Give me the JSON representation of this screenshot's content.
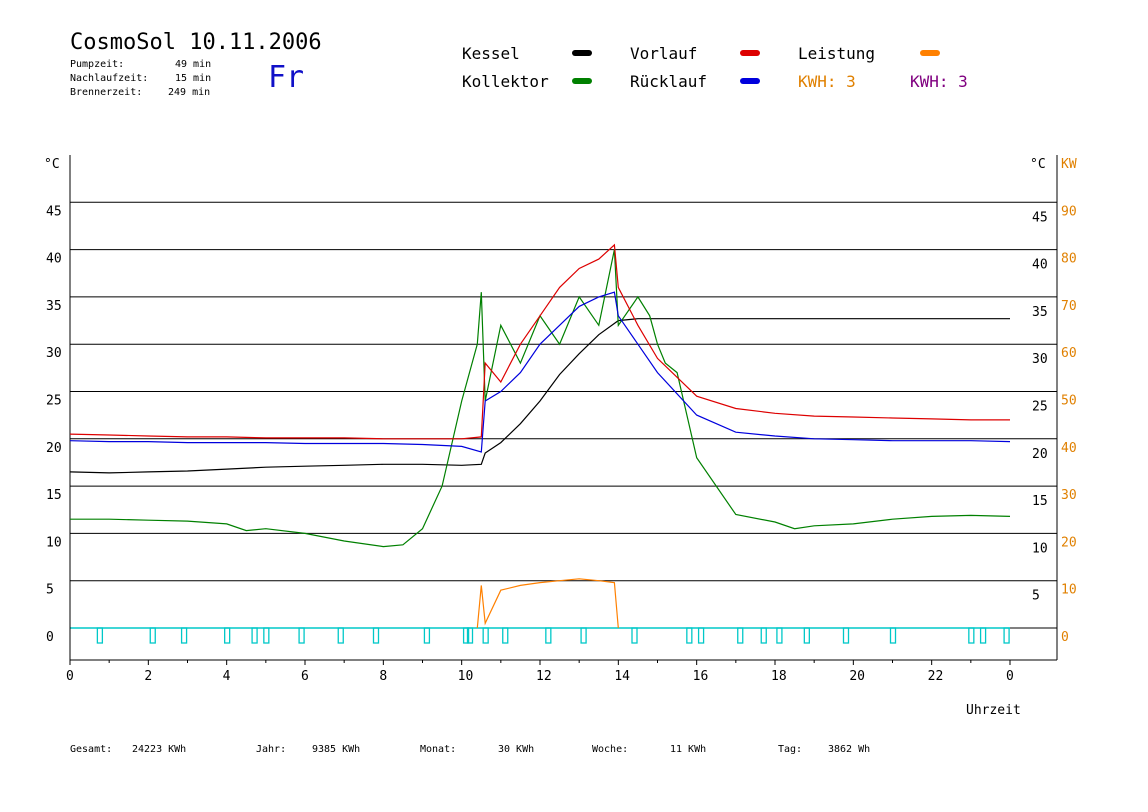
{
  "header": {
    "title": "CosmoSol 10.11.2006",
    "day": "Fr",
    "stats": [
      {
        "label": "Pumpzeit:",
        "value": "49 min"
      },
      {
        "label": "Nachlaufzeit:",
        "value": "15 min"
      },
      {
        "label": "Brennerzeit:",
        "value": "249 min"
      }
    ]
  },
  "legend": {
    "kessel": "Kessel",
    "kollektor": "Kollektor",
    "vorlauf": "Vorlauf",
    "ruecklauf": "Rücklauf",
    "leistung": "Leistung",
    "kwh1": "KWH: 3",
    "kwh2": "KWH: 3"
  },
  "footer": {
    "gesamt": {
      "label": "Gesamt:",
      "value": "24223 KWh"
    },
    "jahr": {
      "label": "Jahr:",
      "value": "9385 KWh"
    },
    "monat": {
      "label": "Monat:",
      "value": "30 KWh"
    },
    "woche": {
      "label": "Woche:",
      "value": "11 KWh"
    },
    "tag": {
      "label": "Tag:",
      "value": "3862 Wh"
    }
  },
  "colors": {
    "kessel": "#000000",
    "kollektor": "#008000",
    "vorlauf": "#dd0000",
    "ruecklauf": "#0000dd",
    "leistung": "#ff8000",
    "kwh2": "#800080",
    "pump": "#00c8c8",
    "kw_axis": "#e08000"
  },
  "chart_data": {
    "type": "line",
    "xlabel": "Uhrzeit",
    "ylabel_left": "°C",
    "ylabel_right": [
      "°C",
      "KW"
    ],
    "xlim": [
      0,
      24
    ],
    "ylim": [
      0,
      50
    ],
    "x_ticks": [
      "0",
      "2",
      "4",
      "6",
      "8",
      "10",
      "12",
      "14",
      "16",
      "18",
      "20",
      "22",
      "0"
    ],
    "y_ticks_left": [
      "0",
      "5",
      "10",
      "15",
      "20",
      "25",
      "30",
      "35",
      "40",
      "45"
    ],
    "y_ticks_right": [
      "5",
      "10",
      "15",
      "20",
      "25",
      "30",
      "35",
      "40",
      "45"
    ],
    "y_ticks_kw": [
      "0",
      "10",
      "20",
      "30",
      "40",
      "50",
      "60",
      "70",
      "80",
      "90"
    ],
    "gridlines_y": [
      5,
      10,
      15,
      20,
      25,
      30,
      35,
      40,
      45
    ],
    "series": [
      {
        "name": "Kessel",
        "key": "kessel",
        "x": [
          0,
          1,
          2,
          3,
          4,
          5,
          6,
          7,
          8,
          9,
          10,
          10.5,
          10.6,
          11,
          11.5,
          12,
          12.5,
          13,
          13.5,
          14,
          14.5,
          15,
          16,
          18,
          20,
          22,
          24
        ],
        "y": [
          16.5,
          16.4,
          16.5,
          16.6,
          16.8,
          17,
          17.1,
          17.2,
          17.3,
          17.3,
          17.2,
          17.3,
          18.5,
          19.6,
          21.6,
          24,
          26.8,
          29,
          31,
          32.5,
          32.7,
          32.7,
          32.7,
          32.7,
          32.7,
          32.7,
          32.7
        ]
      },
      {
        "name": "Kollektor",
        "key": "kollektor",
        "x": [
          0,
          1,
          2,
          3,
          4,
          4.5,
          5,
          6,
          7,
          8,
          8.5,
          9,
          9.5,
          10,
          10.4,
          10.5,
          10.6,
          11,
          11.5,
          12,
          12.5,
          13,
          13.5,
          13.9,
          14,
          14.5,
          14.8,
          15,
          15.2,
          15.5,
          16,
          17,
          18,
          18.5,
          19,
          20,
          21,
          22,
          23,
          24
        ],
        "y": [
          11.5,
          11.5,
          11.4,
          11.3,
          11,
          10.3,
          10.5,
          10,
          9.2,
          8.6,
          8.8,
          10.5,
          15,
          24,
          30,
          35.5,
          24,
          32,
          28,
          33,
          30,
          35,
          32,
          40,
          32,
          35,
          33,
          30,
          28,
          27,
          18,
          12,
          11.2,
          10.5,
          10.8,
          11,
          11.5,
          11.8,
          11.9,
          11.8
        ]
      },
      {
        "name": "Vorlauf",
        "key": "vorlauf",
        "x": [
          0,
          1,
          2,
          3,
          4,
          5,
          6,
          7,
          8,
          9,
          10,
          10.5,
          10.6,
          11,
          11.5,
          12,
          12.5,
          13,
          13.5,
          13.9,
          14,
          14.5,
          15,
          16,
          17,
          18,
          19,
          20,
          21,
          22,
          23,
          24
        ],
        "y": [
          20.5,
          20.4,
          20.3,
          20.2,
          20.2,
          20.1,
          20.1,
          20.1,
          20.0,
          20.0,
          20.0,
          20.2,
          28,
          26,
          30,
          33,
          36,
          38,
          39,
          40.5,
          36,
          32,
          28.5,
          24.5,
          23.2,
          22.7,
          22.4,
          22.3,
          22.2,
          22.1,
          22.0,
          22.0
        ]
      },
      {
        "name": "Rücklauf",
        "key": "ruecklauf",
        "x": [
          0,
          1,
          2,
          3,
          4,
          5,
          6,
          7,
          8,
          9,
          10,
          10.5,
          10.6,
          11,
          11.5,
          12,
          12.5,
          13,
          13.5,
          13.9,
          14,
          14.5,
          15,
          16,
          17,
          18,
          19,
          20,
          21,
          22,
          23,
          24
        ],
        "y": [
          19.8,
          19.7,
          19.7,
          19.6,
          19.6,
          19.6,
          19.5,
          19.5,
          19.5,
          19.4,
          19.2,
          18.6,
          24,
          25,
          27,
          30,
          32,
          34,
          35,
          35.5,
          33,
          30,
          27,
          22.5,
          20.7,
          20.3,
          20.0,
          19.9,
          19.8,
          19.8,
          19.8,
          19.7
        ]
      },
      {
        "name": "Leistung",
        "key": "leistung",
        "x": [
          10.4,
          10.5,
          10.6,
          11,
          11.5,
          12,
          12.5,
          13,
          13.5,
          13.9,
          14
        ],
        "y": [
          0,
          4.5,
          0.5,
          4,
          4.5,
          4.8,
          5.0,
          5.2,
          5.0,
          4.8,
          0
        ]
      }
    ],
    "pump_markers_hours": [
      0.75,
      2.1,
      2.9,
      4,
      4.7,
      5,
      5.9,
      6.9,
      7.8,
      9.1,
      10.1,
      10.2,
      10.6,
      11.1,
      12.2,
      13.1,
      14.4,
      15.8,
      16.1,
      17.1,
      17.7,
      18.1,
      18.8,
      19.8,
      21,
      23,
      23.3,
      23.9
    ]
  }
}
